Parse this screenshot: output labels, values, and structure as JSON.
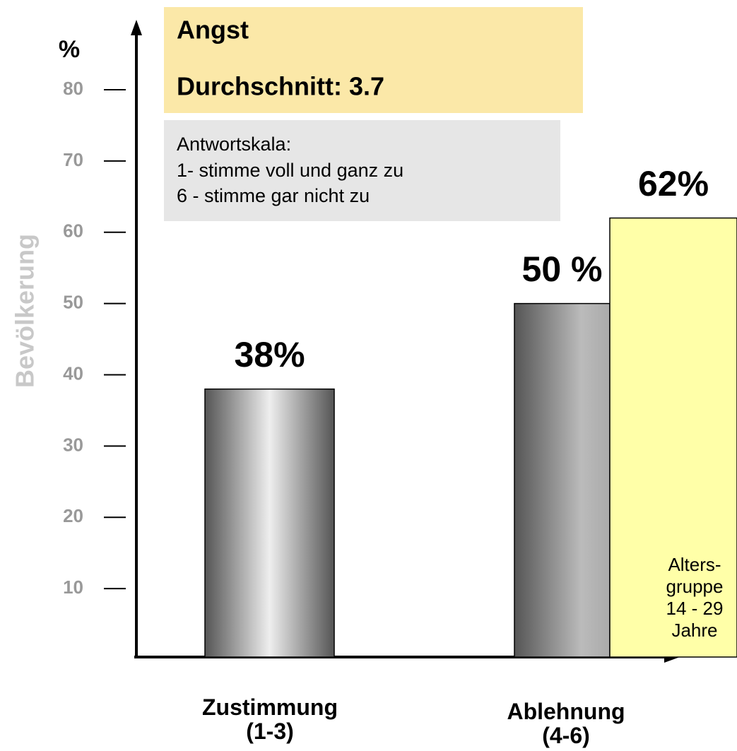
{
  "chart_data": {
    "type": "bar",
    "title": "Angst",
    "subtitle": "Durchschnitt: 3.7",
    "note": [
      "Antwortskala:",
      "1- stimme voll und ganz zu",
      "6 - stimme gar nicht zu"
    ],
    "y_unit": "%",
    "categories": [
      "Zustimmung\n(1-3)",
      "Ablehnung\n(4-6)"
    ],
    "series": [
      {
        "name": "Bevölkerung",
        "color": "#b0b0b0",
        "values": [
          38,
          50
        ],
        "value_labels": [
          "38%",
          "50 %"
        ]
      },
      {
        "name": "Alters-\ngruppe\n14 - 29\nJahre",
        "color": "#ffffa8",
        "values": [
          null,
          62
        ],
        "value_labels": [
          null,
          "62%"
        ]
      }
    ],
    "ylim": [
      0,
      80
    ],
    "yticks": [
      10,
      20,
      30,
      40,
      50,
      60,
      70,
      80
    ]
  }
}
